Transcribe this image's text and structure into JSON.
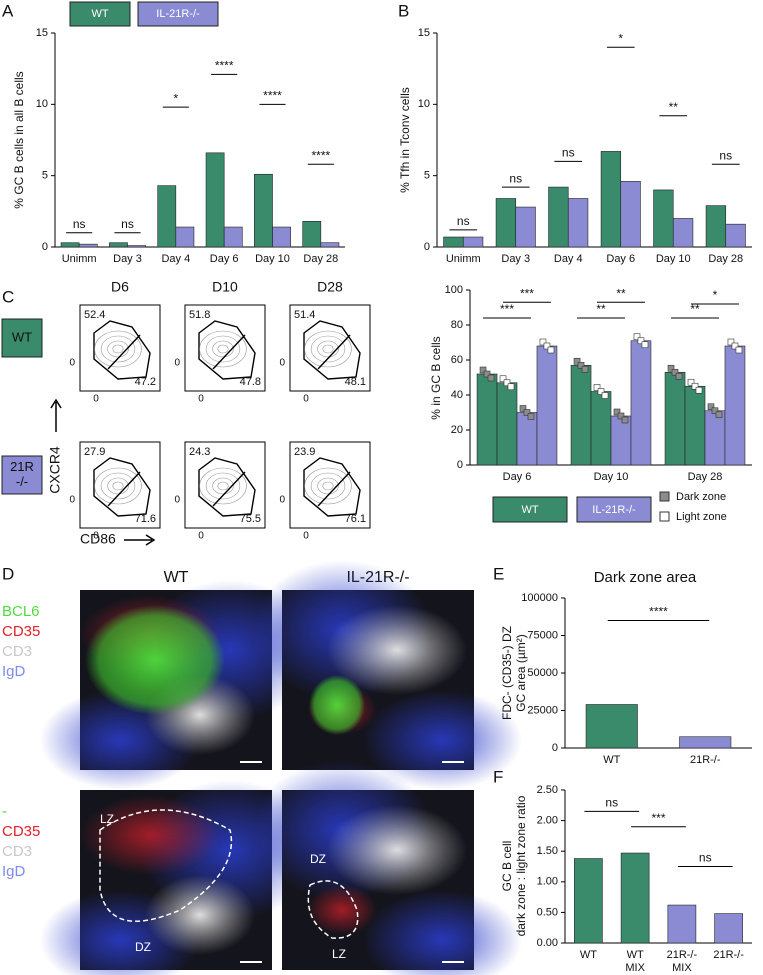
{
  "panel_labels": [
    "A",
    "B",
    "C",
    "D",
    "E",
    "F"
  ],
  "chart_data": [
    {
      "type": "bar",
      "ylabel": [
        "% GC B cells in all B cells"
      ],
      "categories": [
        "Unimm",
        "Day 3",
        "Day 4",
        "Day 6",
        "Day 10",
        "Day 28"
      ],
      "series": [
        {
          "name": "WT",
          "color": "#3a8a6c",
          "values": [
            0.3,
            0.3,
            4.3,
            6.6,
            5.1,
            1.8
          ]
        },
        {
          "name": "IL-21R-/-",
          "color": "#8b8bd3",
          "values": [
            0.2,
            0.1,
            1.4,
            1.4,
            1.4,
            0.3
          ]
        }
      ],
      "ylim": [
        0,
        15
      ],
      "yticks": [
        0,
        5,
        10,
        15
      ],
      "annotations": [
        "ns",
        "ns",
        "*",
        "****",
        "****",
        "****"
      ]
    },
    {
      "type": "bar",
      "ylabel": [
        "% Tfh in Tconv cells"
      ],
      "categories": [
        "Unimm",
        "Day 3",
        "Day 4",
        "Day 6",
        "Day 10",
        "Day 28"
      ],
      "series": [
        {
          "color": "#3a8a6c",
          "values": [
            0.7,
            3.4,
            4.2,
            6.7,
            4.0,
            2.9
          ]
        },
        {
          "color": "#8b8bd3",
          "values": [
            0.7,
            2.8,
            3.4,
            4.6,
            2.0,
            1.6
          ]
        }
      ],
      "ylim": [
        0,
        15
      ],
      "yticks": [
        0,
        5,
        10,
        15
      ],
      "annotations": [
        "ns",
        "ns",
        "ns",
        "*",
        "**",
        "ns"
      ]
    },
    {
      "type": "bar",
      "ylabel": [
        "% in GC B cells"
      ],
      "categories": [
        "Day 6",
        "Day 10",
        "Day 28"
      ],
      "groups": [
        "WT",
        "IL-21R-/-"
      ],
      "zones": [
        "Dark zone",
        "Light zone"
      ],
      "series": [
        {
          "color": "#3a8a6c",
          "point_color": "#8c8c8c",
          "values": [
            52,
            57,
            53
          ]
        },
        {
          "color": "#3a8a6c",
          "point_color": "#ffffff",
          "values": [
            47,
            42,
            45
          ]
        },
        {
          "color": "#8b8bd3",
          "point_color": "#8c8c8c",
          "values": [
            30,
            28,
            31
          ]
        },
        {
          "color": "#8b8bd3",
          "point_color": "#ffffff",
          "values": [
            68,
            71,
            68
          ]
        }
      ],
      "ylim": [
        0,
        100
      ],
      "yticks": [
        0,
        20,
        40,
        60,
        80,
        100
      ],
      "annotations": [
        "***",
        "***",
        "**",
        "**",
        "**",
        "*"
      ]
    },
    {
      "type": "bar",
      "title": "Dark zone area",
      "ylabel": [
        "FDC- (CD35-) DZ",
        "GC area (µm²)"
      ],
      "categories": [
        "WT",
        "21R-/-"
      ],
      "series": [
        {
          "colors": [
            "#3a8a6c",
            "#8b8bd3"
          ],
          "values": [
            29000,
            7500
          ]
        }
      ],
      "ylim": [
        0,
        100000
      ],
      "yticks": [
        0,
        25000,
        50000,
        75000,
        100000
      ],
      "annotations": [
        "****"
      ]
    },
    {
      "type": "bar",
      "ylabel": [
        "GC B cell",
        "dark zone : light zone ratio"
      ],
      "categories": [
        "WT",
        "WT MIX",
        "21R-/- MIX",
        "21R-/-"
      ],
      "series": [
        {
          "colors": [
            "#3a8a6c",
            "#3a8a6c",
            "#8b8bd3",
            "#8b8bd3"
          ],
          "values": [
            1.38,
            1.47,
            0.62,
            0.48
          ]
        }
      ],
      "ylim": [
        0,
        2.5
      ],
      "yticks": [
        {
          "value": 0,
          "label": "0.00"
        },
        {
          "value": 0.5,
          "label": "0.50"
        },
        {
          "value": 1,
          "label": "1.00"
        },
        {
          "value": 1.5,
          "label": "1.50"
        },
        {
          "value": 2,
          "label": "2.00"
        },
        {
          "value": 2.5,
          "label": "2.50"
        }
      ],
      "annotations": [
        "ns",
        "***",
        "ns"
      ]
    }
  ],
  "flow": {
    "columns": [
      "D6",
      "D10",
      "D28"
    ],
    "rows": [
      {
        "label": [
          "WT"
        ],
        "values": [
          [
            52.4,
            47.2
          ],
          [
            51.8,
            47.8
          ],
          [
            51.4,
            48.1
          ]
        ]
      },
      {
        "label": [
          "21R",
          "-/-"
        ],
        "values": [
          [
            27.9,
            71.6
          ],
          [
            24.3,
            75.5
          ],
          [
            23.9,
            76.1
          ]
        ]
      }
    ],
    "y_label": "CXCR4",
    "x_label": "CD86",
    "axis_zero": "0"
  },
  "micrographs": {
    "columns": [
      "WT",
      "IL-21R-/-"
    ],
    "channels": [
      [
        "BCL6",
        "CD35",
        "CD3",
        "IgD"
      ],
      [
        "-",
        "CD35",
        "CD3",
        "IgD"
      ]
    ],
    "zones": [
      [
        "LZ",
        "DZ"
      ],
      [
        "DZ",
        "LZ"
      ]
    ]
  }
}
